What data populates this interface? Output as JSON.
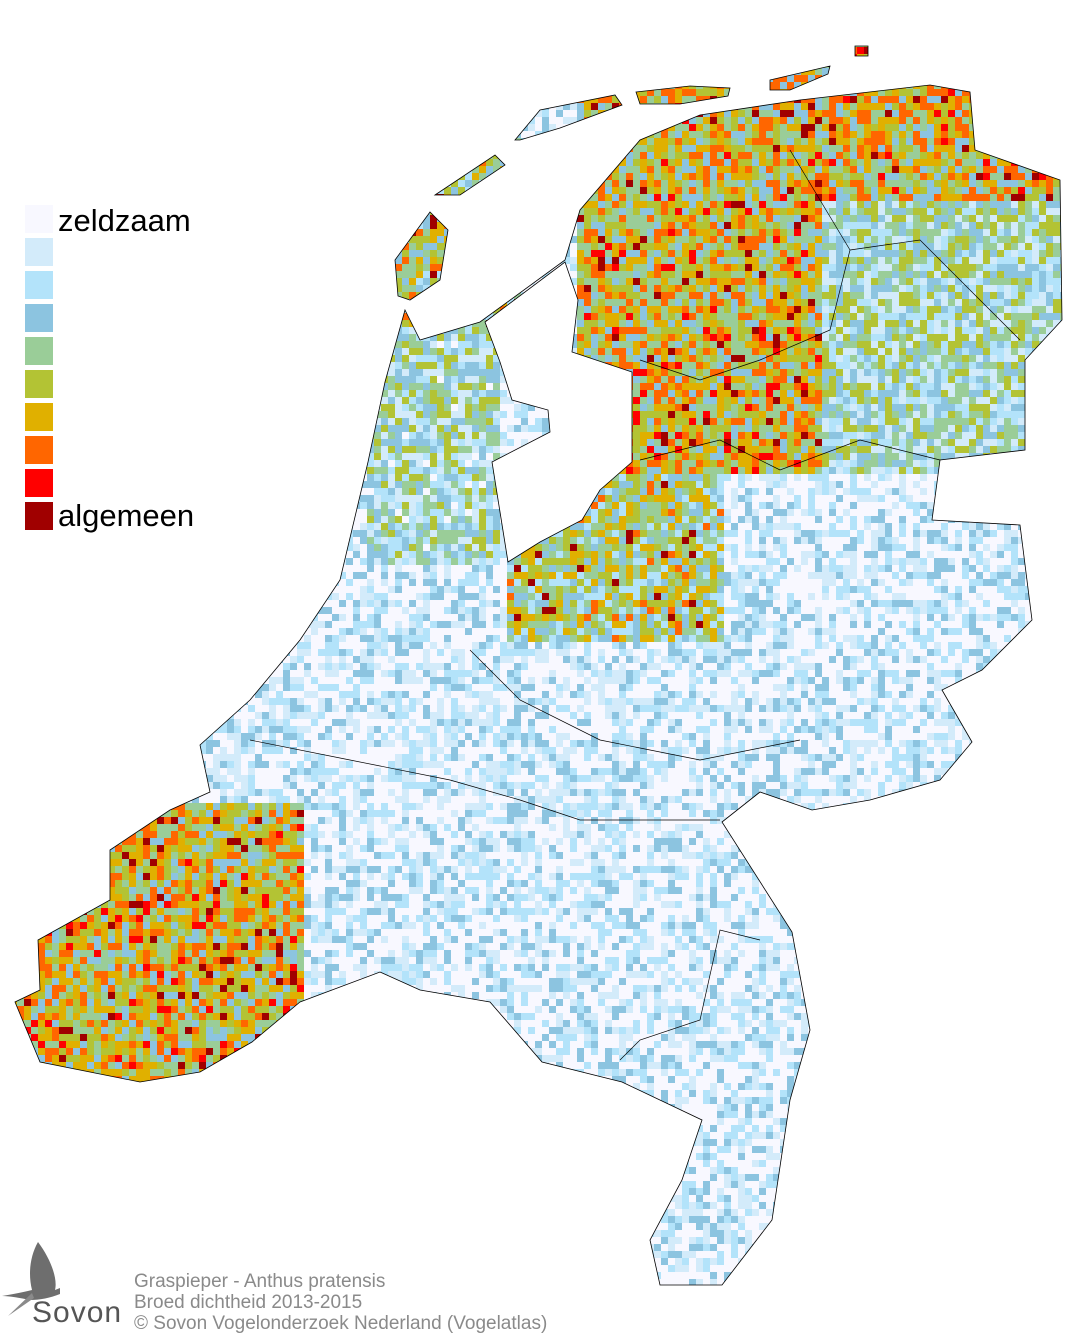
{
  "legend": {
    "top_label": "zeldzaam",
    "bottom_label": "algemeen",
    "colors": [
      "#f8f8ff",
      "#d3ebfa",
      "#b3e3fa",
      "#8cc4e0",
      "#9acd98",
      "#b3c334",
      "#e0b000",
      "#ff6600",
      "#ff0000",
      "#a00000"
    ]
  },
  "footer": {
    "species": "Graspieper - Anthus pratensis",
    "subtitle": "Broed dichtheid 2013-2015",
    "copyright": "© Sovon Vogelonderzoek Nederland (Vogelatlas)"
  },
  "logo": {
    "text": "Sovon"
  },
  "map": {
    "border_color": "#000000"
  }
}
